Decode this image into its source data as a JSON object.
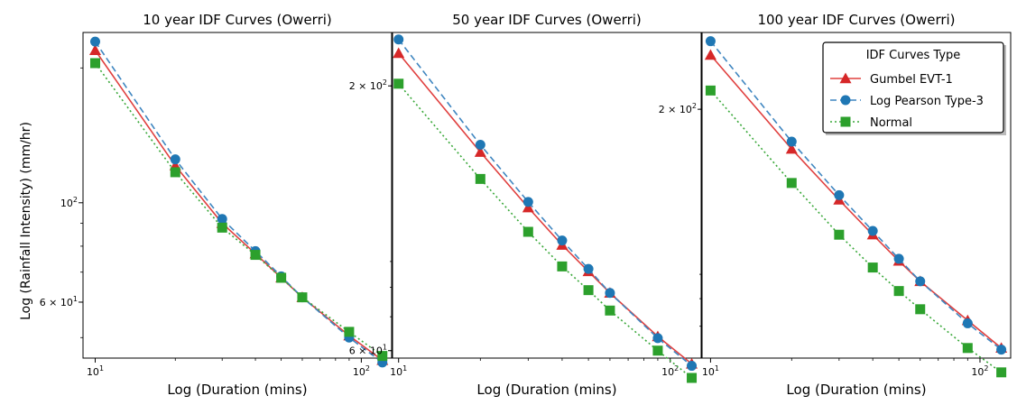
{
  "figure": {
    "ylabel": "Log (Rainfall Intensity) (mm/hr)"
  },
  "legend": {
    "title": "IDF Curves Type",
    "entries": [
      "Gumbel EVT-1",
      "Log Pearson Type-3",
      "Normal"
    ]
  },
  "colors": {
    "gumbel": "#d62728",
    "lp3": "#1f77b4",
    "normal": "#2ca02c",
    "gumbel_line": "#e0403f",
    "lp3_line": "#3f86c0",
    "normal_line": "#3aa83a"
  },
  "chart_data": [
    {
      "type": "line",
      "title": "10 year IDF Curves (Owerri)",
      "xlabel": "Log (Duration (mins)",
      "ylabel": "Log (Rainfall Intensity) (mm/hr)",
      "xscale": "log",
      "yscale": "log",
      "xlim": [
        9.0,
        130
      ],
      "ylim": [
        45,
        240
      ],
      "x_tick_labels": [
        "10^1",
        "10^2"
      ],
      "y_tick_labels": [
        "10^2",
        "6 × 10^1"
      ],
      "grid": false,
      "x": [
        10,
        20,
        30,
        40,
        50,
        60,
        90,
        120
      ],
      "series": [
        {
          "name": "Gumbel EVT-1",
          "values": [
            219,
            121,
            90,
            77,
            68,
            61.5,
            50.5,
            44.5
          ]
        },
        {
          "name": "Log Pearson Type-3",
          "values": [
            229,
            125,
            92,
            78,
            68.5,
            61.5,
            50,
            44
          ]
        },
        {
          "name": "Normal",
          "values": [
            205,
            117,
            88,
            76.5,
            68,
            61.5,
            51.5,
            45.5
          ]
        }
      ]
    },
    {
      "type": "line",
      "title": "50 year IDF Curves (Owerri)",
      "xlabel": "Log (Duration (mins)",
      "xscale": "log",
      "yscale": "log",
      "xlim": [
        9.5,
        130
      ],
      "ylim": [
        58,
        255
      ],
      "x_tick_labels": [
        "10^1",
        "10^2"
      ],
      "y_tick_labels": [
        "2 × 10^2",
        "6 × 10^1"
      ],
      "grid": false,
      "x": [
        10,
        20,
        30,
        40,
        50,
        60,
        90,
        120
      ],
      "series": [
        {
          "name": "Gumbel EVT-1",
          "values": [
            232,
            148,
            115,
            97,
            86,
            78,
            64,
            56.5
          ]
        },
        {
          "name": "Log Pearson Type-3",
          "values": [
            247,
            153,
            118,
            99,
            87,
            78,
            63.5,
            56
          ]
        },
        {
          "name": "Normal",
          "values": [
            202,
            131,
            103,
            88,
            79,
            72,
            60,
            53
          ]
        }
      ]
    },
    {
      "type": "line",
      "title": "100 year IDF Curves (Owerri)",
      "xlabel": "Log (Duration (mins)",
      "xscale": "log",
      "yscale": "log",
      "xlim": [
        9.3,
        130
      ],
      "ylim": [
        60,
        290
      ],
      "x_tick_labels": [
        "10^1",
        "10^2"
      ],
      "y_tick_labels": [
        "2 × 10^2"
      ],
      "grid": false,
      "legend": "top-right",
      "x": [
        10,
        20,
        30,
        40,
        50,
        60,
        90,
        120
      ],
      "series": [
        {
          "name": "Gumbel EVT-1",
          "values": [
            260,
            165,
            129,
            109,
            96,
            87,
            72,
            63
          ]
        },
        {
          "name": "Log Pearson Type-3",
          "values": [
            278,
            171,
            132,
            111,
            97,
            87,
            71,
            62.5
          ]
        },
        {
          "name": "Normal",
          "values": [
            219,
            140,
            109,
            93,
            83,
            76,
            63,
            56
          ]
        }
      ]
    }
  ]
}
